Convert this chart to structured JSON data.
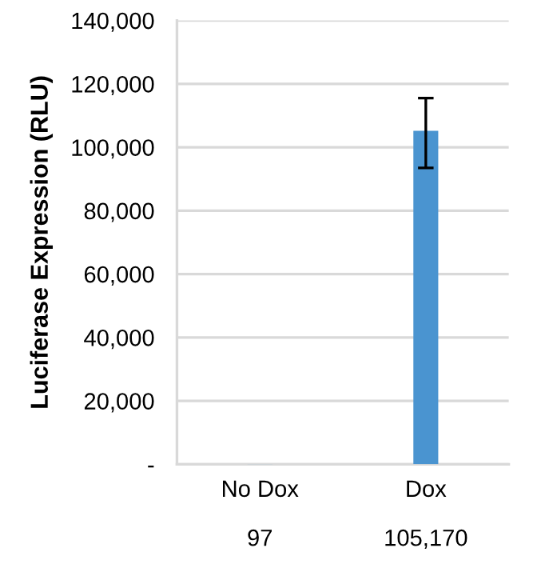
{
  "chart_data": {
    "type": "bar",
    "ylabel": "Luciferase Expression (RLU)",
    "categories": [
      "No Dox",
      "Dox"
    ],
    "values": [
      97,
      105170
    ],
    "value_labels": [
      "97",
      "105,170"
    ],
    "errors": [
      null,
      [
        93500,
        115500
      ]
    ],
    "color": "#4a94d0",
    "ylim": [
      0,
      140000
    ],
    "yticks": [
      {
        "value": 0,
        "label": "-"
      },
      {
        "value": 20000,
        "label": "20,000"
      },
      {
        "value": 40000,
        "label": "40,000"
      },
      {
        "value": 60000,
        "label": "60,000"
      },
      {
        "value": 80000,
        "label": "80,000"
      },
      {
        "value": 100000,
        "label": "100,000"
      },
      {
        "value": 120000,
        "label": "120,000"
      },
      {
        "value": 140000,
        "label": "140,000"
      }
    ],
    "grid": "y",
    "legend": false
  }
}
